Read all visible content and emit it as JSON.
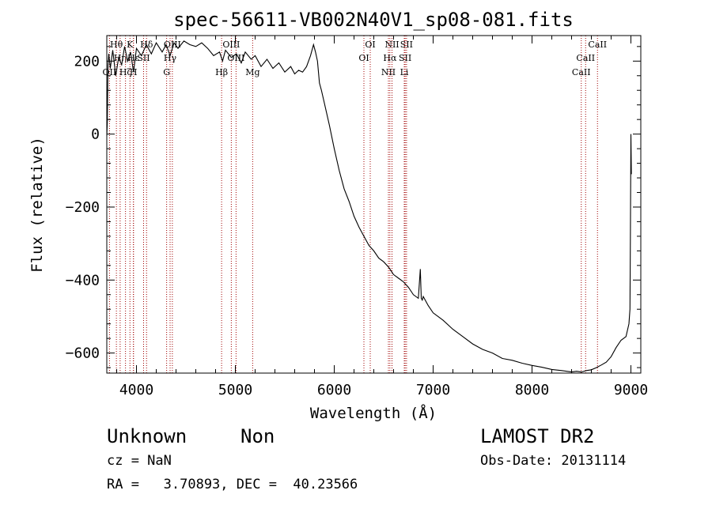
{
  "chart_data": {
    "type": "line",
    "title": "spec-56611-VB002N40V1_sp08-081.fits",
    "xlabel": "Wavelength (Å)",
    "ylabel": "Flux (relative)",
    "xlim": [
      3700,
      9100
    ],
    "ylim": [
      -655,
      270
    ],
    "xticks": [
      4000,
      5000,
      6000,
      7000,
      8000,
      9000
    ],
    "yticks": [
      -600,
      -400,
      -200,
      0,
      200
    ],
    "grid": false,
    "series": [
      {
        "x": [
          3700,
          3705,
          3712,
          3720,
          3735,
          3760,
          3790,
          3820,
          3850,
          3880,
          3910,
          3940,
          3970,
          4000,
          4050,
          4100,
          4150,
          4200,
          4260,
          4300,
          4340,
          4380,
          4420,
          4480,
          4540,
          4600,
          4660,
          4720,
          4780,
          4840,
          4870,
          4900,
          4960,
          5010,
          5060,
          5100,
          5160,
          5200,
          5260,
          5320,
          5380,
          5440,
          5500,
          5560,
          5600,
          5640,
          5680,
          5720,
          5760,
          5790,
          5810,
          5830,
          5850,
          5870,
          5900,
          5950,
          6000,
          6050,
          6100,
          6150,
          6200,
          6250,
          6300,
          6350,
          6400,
          6450,
          6500,
          6550,
          6600,
          6650,
          6700,
          6750,
          6800,
          6850,
          6870,
          6880,
          6890,
          6900,
          6950,
          7000,
          7100,
          7200,
          7300,
          7400,
          7500,
          7600,
          7700,
          7800,
          7900,
          8000,
          8100,
          8200,
          8300,
          8400,
          8450,
          8500,
          8550,
          8600,
          8650,
          8700,
          8750,
          8800,
          8850,
          8900,
          8950,
          8980,
          8990,
          8995,
          9000,
          9005
        ],
        "y": [
          -5,
          30,
          190,
          220,
          180,
          230,
          160,
          210,
          190,
          240,
          200,
          225,
          170,
          235,
          215,
          245,
          220,
          250,
          225,
          245,
          215,
          250,
          235,
          255,
          245,
          240,
          250,
          235,
          215,
          225,
          200,
          230,
          210,
          220,
          195,
          225,
          205,
          215,
          185,
          205,
          180,
          195,
          170,
          185,
          165,
          175,
          170,
          185,
          215,
          245,
          225,
          200,
          140,
          120,
          85,
          25,
          -40,
          -100,
          -150,
          -185,
          -225,
          -255,
          -280,
          -305,
          -320,
          -340,
          -350,
          -365,
          -385,
          -395,
          -405,
          -420,
          -440,
          -450,
          -370,
          -450,
          -455,
          -445,
          -470,
          -490,
          -510,
          -535,
          -555,
          -575,
          -590,
          -600,
          -615,
          -620,
          -628,
          -634,
          -639,
          -645,
          -648,
          -652,
          -650,
          -652,
          -648,
          -646,
          -640,
          -633,
          -625,
          -610,
          -585,
          -565,
          -555,
          -520,
          -480,
          -260,
          0,
          -110
        ]
      }
    ],
    "lines": [
      {
        "label": "Hθ",
        "x": 3797,
        "row": 0,
        "color": "#a00000"
      },
      {
        "label": "OII",
        "x": 3727,
        "row": 2,
        "color": "#a00000"
      },
      {
        "label": "Hη",
        "x": 3835,
        "row": 1,
        "color": "#a00000"
      },
      {
        "label": "Hζ",
        "x": 3889,
        "row": 2,
        "color": "#a00000"
      },
      {
        "label": "K",
        "x": 3934,
        "row": 0,
        "color": "#a00000"
      },
      {
        "label": "H",
        "x": 3969,
        "row": 2,
        "color": "#a00000"
      },
      {
        "label": "Hε",
        "x": 3970,
        "row": 1,
        "color": "#a00000"
      },
      {
        "label": "Hδ",
        "x": 4102,
        "row": 0,
        "color": "#a00000"
      },
      {
        "label": "SII",
        "x": 4072,
        "row": 1,
        "color": "#a00000"
      },
      {
        "label": "OIII",
        "x": 4363,
        "row": 0,
        "color": "#a00000"
      },
      {
        "label": "G",
        "x": 4305,
        "row": 2,
        "color": "#a00000"
      },
      {
        "label": "Hγ",
        "x": 4340,
        "row": 1,
        "color": "#a00000"
      },
      {
        "label": "OIII",
        "x": 4959,
        "row": 0,
        "color": "#a00000"
      },
      {
        "label": "OIII",
        "x": 5007,
        "row": 1,
        "color": "#a00000"
      },
      {
        "label": "Hβ",
        "x": 4861,
        "row": 2,
        "color": "#a00000"
      },
      {
        "label": "Mg",
        "x": 5175,
        "row": 2,
        "color": "#a00000"
      },
      {
        "label": "OI",
        "x": 6364,
        "row": 0,
        "color": "#a00000"
      },
      {
        "label": "OI",
        "x": 6300,
        "row": 1,
        "color": "#a00000"
      },
      {
        "label": "NII",
        "x": 6584,
        "row": 0,
        "color": "#a00000"
      },
      {
        "label": "Hα",
        "x": 6563,
        "row": 1,
        "color": "#a00000"
      },
      {
        "label": "NII",
        "x": 6548,
        "row": 2,
        "color": "#a00000"
      },
      {
        "label": "SII",
        "x": 6731,
        "row": 0,
        "color": "#a00000"
      },
      {
        "label": "SII",
        "x": 6717,
        "row": 1,
        "color": "#a00000"
      },
      {
        "label": "Li",
        "x": 6708,
        "row": 2,
        "color": "#a00000"
      },
      {
        "label": "CaII",
        "x": 8662,
        "row": 0,
        "color": "#a00000"
      },
      {
        "label": "CaII",
        "x": 8542,
        "row": 1,
        "color": "#a00000"
      },
      {
        "label": "CaII",
        "x": 8498,
        "row": 2,
        "color": "#a00000"
      }
    ]
  },
  "footer": {
    "class_label": "Unknown",
    "subclass_label": "Non",
    "survey_label": "LAMOST DR2",
    "cz_text": "cz = NaN",
    "obs_date_text": "Obs-Date: 20131114",
    "coords_text": "RA =   3.70893, DEC =  40.23566"
  }
}
